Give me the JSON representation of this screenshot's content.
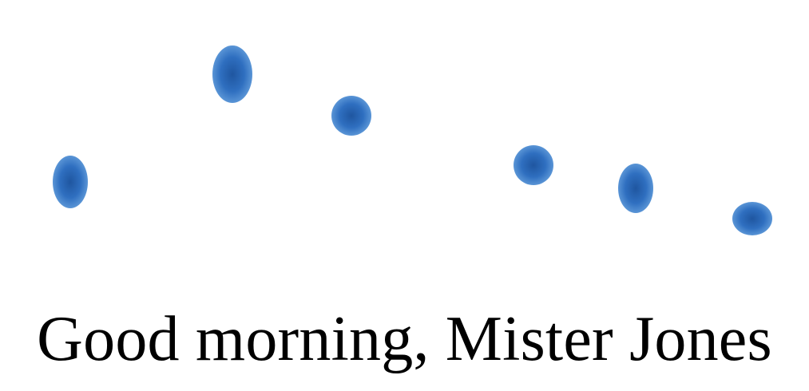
{
  "caption": "Good morning, Mister Jones",
  "colors": {
    "dot_light": "#5a95d6",
    "dot_mid": "#2f6fc0",
    "dot_dark": "#1f56a0",
    "text": "#000000",
    "background": "#ffffff"
  },
  "dots": [
    {
      "name": "dot-1"
    },
    {
      "name": "dot-2"
    },
    {
      "name": "dot-3"
    },
    {
      "name": "dot-4"
    },
    {
      "name": "dot-5"
    },
    {
      "name": "dot-6"
    }
  ]
}
